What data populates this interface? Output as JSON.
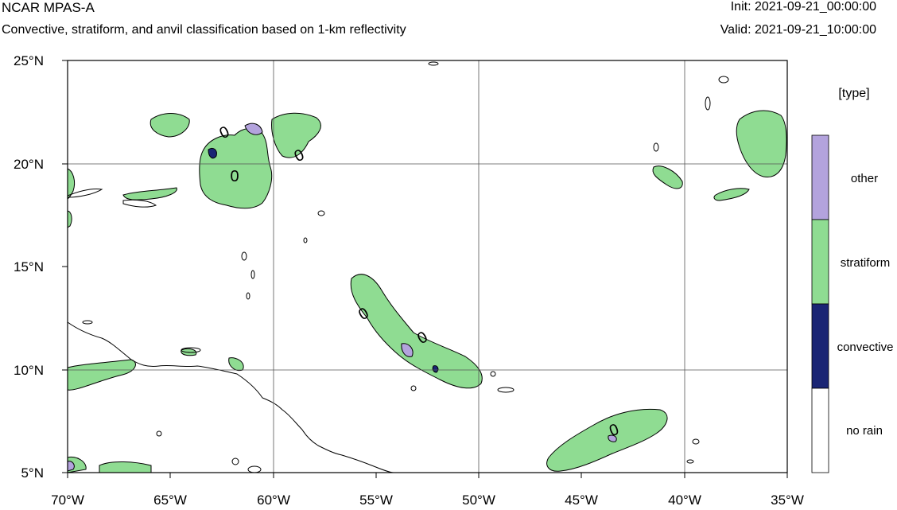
{
  "header": {
    "title": "NCAR MPAS-A",
    "subtitle": "Convective, stratiform, and anvil classification based on 1-km reflectivity",
    "init": "Init: 2021-09-21_00:00:00",
    "valid": "Valid: 2021-09-21_10:00:00"
  },
  "map": {
    "lon_labels": [
      "70°W",
      "65°W",
      "60°W",
      "55°W",
      "50°W",
      "45°W",
      "40°W",
      "35°W"
    ],
    "lat_labels": [
      "25°N",
      "20°N",
      "15°N",
      "10°N",
      "5°N"
    ],
    "lon_range": [
      -70,
      -35
    ],
    "lat_range": [
      5,
      25
    ],
    "contour_label": "0"
  },
  "legend": {
    "title": "[type]",
    "items": [
      {
        "label": "other",
        "color": "#b3a3dd"
      },
      {
        "label": "stratiform",
        "color": "#8fdc92"
      },
      {
        "label": "convective",
        "color": "#1a2574"
      },
      {
        "label": "no rain",
        "color": "#ffffff"
      }
    ]
  },
  "colors": {
    "stratiform": "#8fdc92",
    "other": "#b3a3dd",
    "convective": "#1a2574",
    "coast": "#000000",
    "grid": "#555555"
  }
}
